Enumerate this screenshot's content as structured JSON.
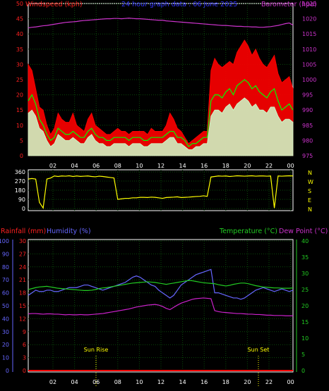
{
  "chart_data": [
    {
      "type": "line",
      "title": "24 hour graph data : 06 June 2025",
      "left_axis_label": "Windspeed (kph)",
      "right_axis_label": "Barometer (hpa)",
      "left_ylim": [
        0,
        50
      ],
      "left_ticks": [
        "0",
        "5",
        "10",
        "15",
        "20",
        "25",
        "30",
        "35",
        "40",
        "45",
        "50"
      ],
      "right_ylim": [
        975,
        1025
      ],
      "right_ticks": [
        "975",
        "980",
        "985",
        "990",
        "995",
        "1000",
        "1005",
        "1010",
        "1015",
        "1020",
        "1025"
      ],
      "x_ticks": [
        "02",
        "04",
        "06",
        "08",
        "10",
        "12",
        "14",
        "16",
        "18",
        "20",
        "22",
        "00"
      ],
      "grid": true,
      "colors": {
        "gust": "#ff0000",
        "avg": "#00ff00",
        "wind": "#ccffcc",
        "baro": "#cc33cc"
      },
      "series": [
        {
          "key": "gust",
          "values": [
            30,
            28,
            22,
            16,
            15,
            10,
            7,
            9,
            14,
            12,
            11,
            11,
            14,
            10,
            9,
            8,
            12,
            14,
            10,
            9,
            8,
            7,
            7,
            8,
            9,
            8,
            8,
            7,
            8,
            8,
            8,
            8,
            7,
            9,
            8,
            8,
            8,
            10,
            14,
            12,
            9,
            8,
            6,
            4,
            5,
            6,
            7,
            8,
            8,
            28,
            32,
            30,
            29,
            30,
            31,
            30,
            34,
            36,
            38,
            36,
            33,
            35,
            32,
            30,
            29,
            31,
            33,
            27,
            24,
            25,
            26,
            22
          ]
        },
        {
          "key": "avg",
          "values": [
            18,
            20,
            17,
            12,
            10,
            7,
            5,
            6,
            9,
            8,
            7,
            7,
            8,
            7,
            6,
            6,
            8,
            9,
            7,
            6,
            6,
            5,
            5,
            6,
            6,
            6,
            6,
            5,
            6,
            6,
            6,
            5,
            5,
            6,
            6,
            6,
            6,
            7,
            8,
            8,
            6,
            6,
            5,
            3,
            4,
            4,
            5,
            6,
            6,
            18,
            20,
            20,
            19,
            21,
            22,
            20,
            23,
            24,
            25,
            24,
            22,
            23,
            21,
            20,
            19,
            21,
            22,
            18,
            15,
            16,
            17,
            15
          ]
        },
        {
          "key": "wind",
          "values": [
            14,
            15,
            13,
            9,
            8,
            5,
            3,
            4,
            7,
            6,
            5,
            5,
            6,
            5,
            4,
            4,
            6,
            7,
            5,
            4,
            4,
            3,
            3,
            4,
            4,
            4,
            4,
            3,
            4,
            4,
            4,
            3,
            3,
            4,
            4,
            4,
            4,
            5,
            6,
            6,
            4,
            4,
            3,
            2,
            2,
            3,
            3,
            4,
            4,
            13,
            15,
            15,
            14,
            16,
            17,
            15,
            17,
            18,
            19,
            18,
            16,
            17,
            15,
            15,
            14,
            16,
            16,
            13,
            11,
            12,
            12,
            11
          ]
        },
        {
          "key": "baro",
          "axis": "right",
          "values": [
            1017,
            1017.2,
            1017.3,
            1017.5,
            1017.7,
            1017.8,
            1018,
            1018.2,
            1018.4,
            1018.6,
            1018.8,
            1018.9,
            1019,
            1019.1,
            1019.3,
            1019.4,
            1019.5,
            1019.6,
            1019.7,
            1019.8,
            1019.9,
            1020,
            1020,
            1020.1,
            1020.1,
            1020,
            1020.1,
            1020.2,
            1020.1,
            1020,
            1020,
            1019.9,
            1019.8,
            1019.7,
            1019.6,
            1019.5,
            1019.5,
            1019.3,
            1019.2,
            1019.1,
            1019,
            1018.9,
            1018.8,
            1018.7,
            1018.6,
            1018.5,
            1018.4,
            1018.3,
            1018.2,
            1018.1,
            1018,
            1017.9,
            1017.8,
            1017.8,
            1017.7,
            1017.6,
            1017.5,
            1017.5,
            1017.4,
            1017.4,
            1017.3,
            1017.3,
            1017.2,
            1017.2,
            1017.3,
            1017.4,
            1017.6,
            1017.8,
            1018.1,
            1018.4,
            1018.6,
            1017.9
          ]
        }
      ]
    },
    {
      "type": "line",
      "left_ticks": [
        "0",
        "90",
        "180",
        "270",
        "360"
      ],
      "right_labels": [
        "N",
        "W",
        "S",
        "E",
        "N"
      ],
      "ylim": [
        0,
        360
      ],
      "x_ticks": [
        "02",
        "04",
        "06",
        "08",
        "10",
        "12",
        "14",
        "16",
        "18",
        "20",
        "22",
        "00"
      ],
      "colors": {
        "dir": "#ffff00"
      },
      "series": [
        {
          "key": "dir",
          "values": [
            290,
            295,
            290,
            60,
            5,
            290,
            300,
            320,
            315,
            320,
            318,
            322,
            315,
            320,
            316,
            318,
            320,
            315,
            312,
            318,
            315,
            310,
            305,
            300,
            90,
            95,
            100,
            100,
            105,
            105,
            110,
            110,
            108,
            112,
            110,
            105,
            100,
            108,
            110,
            112,
            115,
            108,
            110,
            112,
            115,
            118,
            120,
            125,
            120,
            310,
            315,
            320,
            318,
            320,
            315,
            318,
            322,
            320,
            318,
            320,
            322,
            318,
            320,
            320,
            318,
            320,
            5,
            320,
            318,
            320,
            322,
            320
          ]
        }
      ]
    },
    {
      "type": "line",
      "rain_label": "Rainfall (mm)",
      "humidity_label": "Humidity (%)",
      "temperature_label": "Temperature (°C)",
      "dew_label": "Dew Point (°C)",
      "humidity_ticks": [
        "0",
        "10",
        "20",
        "30",
        "40",
        "50",
        "60",
        "70",
        "80",
        "90",
        "100"
      ],
      "rain_ticks": [
        "0",
        "3",
        "6",
        "9",
        "12",
        "15",
        "18",
        "21",
        "24",
        "27",
        "30"
      ],
      "temp_ticks": [
        "0",
        "5",
        "10",
        "15",
        "20",
        "25",
        "30",
        "35",
        "40"
      ],
      "humidity_ylim": [
        0,
        100
      ],
      "rain_ylim": [
        0,
        30
      ],
      "temp_ylim": [
        0,
        40
      ],
      "x_ticks": [
        "02",
        "04",
        "06",
        "08",
        "10",
        "12",
        "14",
        "16",
        "18",
        "20",
        "22",
        "00"
      ],
      "annotations": [
        {
          "text": "Sun Rise"
        },
        {
          "text": "Sun Set"
        }
      ],
      "colors": {
        "rain": "#ff0000",
        "humidity": "#6666ff",
        "temp": "#22cc22",
        "dew": "#cc22cc"
      },
      "series": [
        {
          "key": "humidity",
          "values": [
            58,
            60,
            62,
            61,
            61,
            62,
            62,
            61,
            61,
            62,
            63,
            64,
            64,
            64,
            65,
            66,
            66,
            65,
            64,
            63,
            62,
            63,
            64,
            65,
            66,
            67,
            68,
            70,
            72,
            73,
            72,
            70,
            68,
            66,
            65,
            62,
            60,
            58,
            56,
            58,
            62,
            66,
            68,
            70,
            72,
            74,
            75,
            76,
            77,
            78,
            60,
            60,
            59,
            58,
            57,
            56,
            56,
            55,
            56,
            58,
            60,
            62,
            63,
            64,
            63,
            62,
            61,
            62,
            63,
            62,
            61,
            62
          ]
        },
        {
          "key": "temp",
          "values": [
            25,
            25.3,
            25.6,
            25.8,
            25.9,
            26,
            25.8,
            25.6,
            25.4,
            25.3,
            25.2,
            25.1,
            25,
            24.9,
            24.8,
            24.7,
            24.7,
            24.8,
            25,
            25.3,
            25.5,
            25.6,
            25.8,
            26,
            26.2,
            26.4,
            26.6,
            26.8,
            27,
            27.1,
            27.2,
            27.3,
            27.4,
            27.3,
            27.2,
            27,
            26.8,
            26.6,
            26.8,
            27,
            27.2,
            27.4,
            27.6,
            27.8,
            27.7,
            27.5,
            27.3,
            27.1,
            27,
            26.9,
            26.8,
            26.5,
            26.3,
            26.1,
            26.3,
            26.6,
            26.8,
            27,
            27,
            26.8,
            26.5,
            26.2,
            26,
            25.8,
            25.7,
            25.6,
            25.5,
            25.5,
            25.4,
            25.4,
            25.4,
            25.5
          ]
        },
        {
          "key": "dew",
          "values": [
            17.5,
            17.6,
            17.6,
            17.5,
            17.4,
            17.5,
            17.5,
            17.4,
            17.4,
            17.3,
            17.2,
            17.3,
            17.2,
            17.2,
            17.3,
            17.2,
            17.2,
            17.3,
            17.4,
            17.5,
            17.6,
            17.8,
            18,
            18.2,
            18.4,
            18.6,
            18.8,
            19,
            19.3,
            19.6,
            19.8,
            20,
            20.2,
            20.3,
            20.4,
            20.2,
            19.8,
            19.2,
            18.8,
            19.5,
            20.2,
            20.8,
            21.2,
            21.6,
            22,
            22.2,
            22.3,
            22.4,
            22.3,
            22.2,
            18.5,
            18.2,
            18,
            17.9,
            17.8,
            17.7,
            17.6,
            17.6,
            17.5,
            17.4,
            17.4,
            17.3,
            17.3,
            17.2,
            17.1,
            17.1,
            17,
            17,
            17,
            16.9,
            16.9,
            16.9
          ]
        },
        {
          "key": "rain",
          "values": [
            0,
            0,
            0,
            0,
            0,
            0,
            0,
            0,
            0,
            0,
            0,
            0
          ]
        }
      ]
    }
  ]
}
